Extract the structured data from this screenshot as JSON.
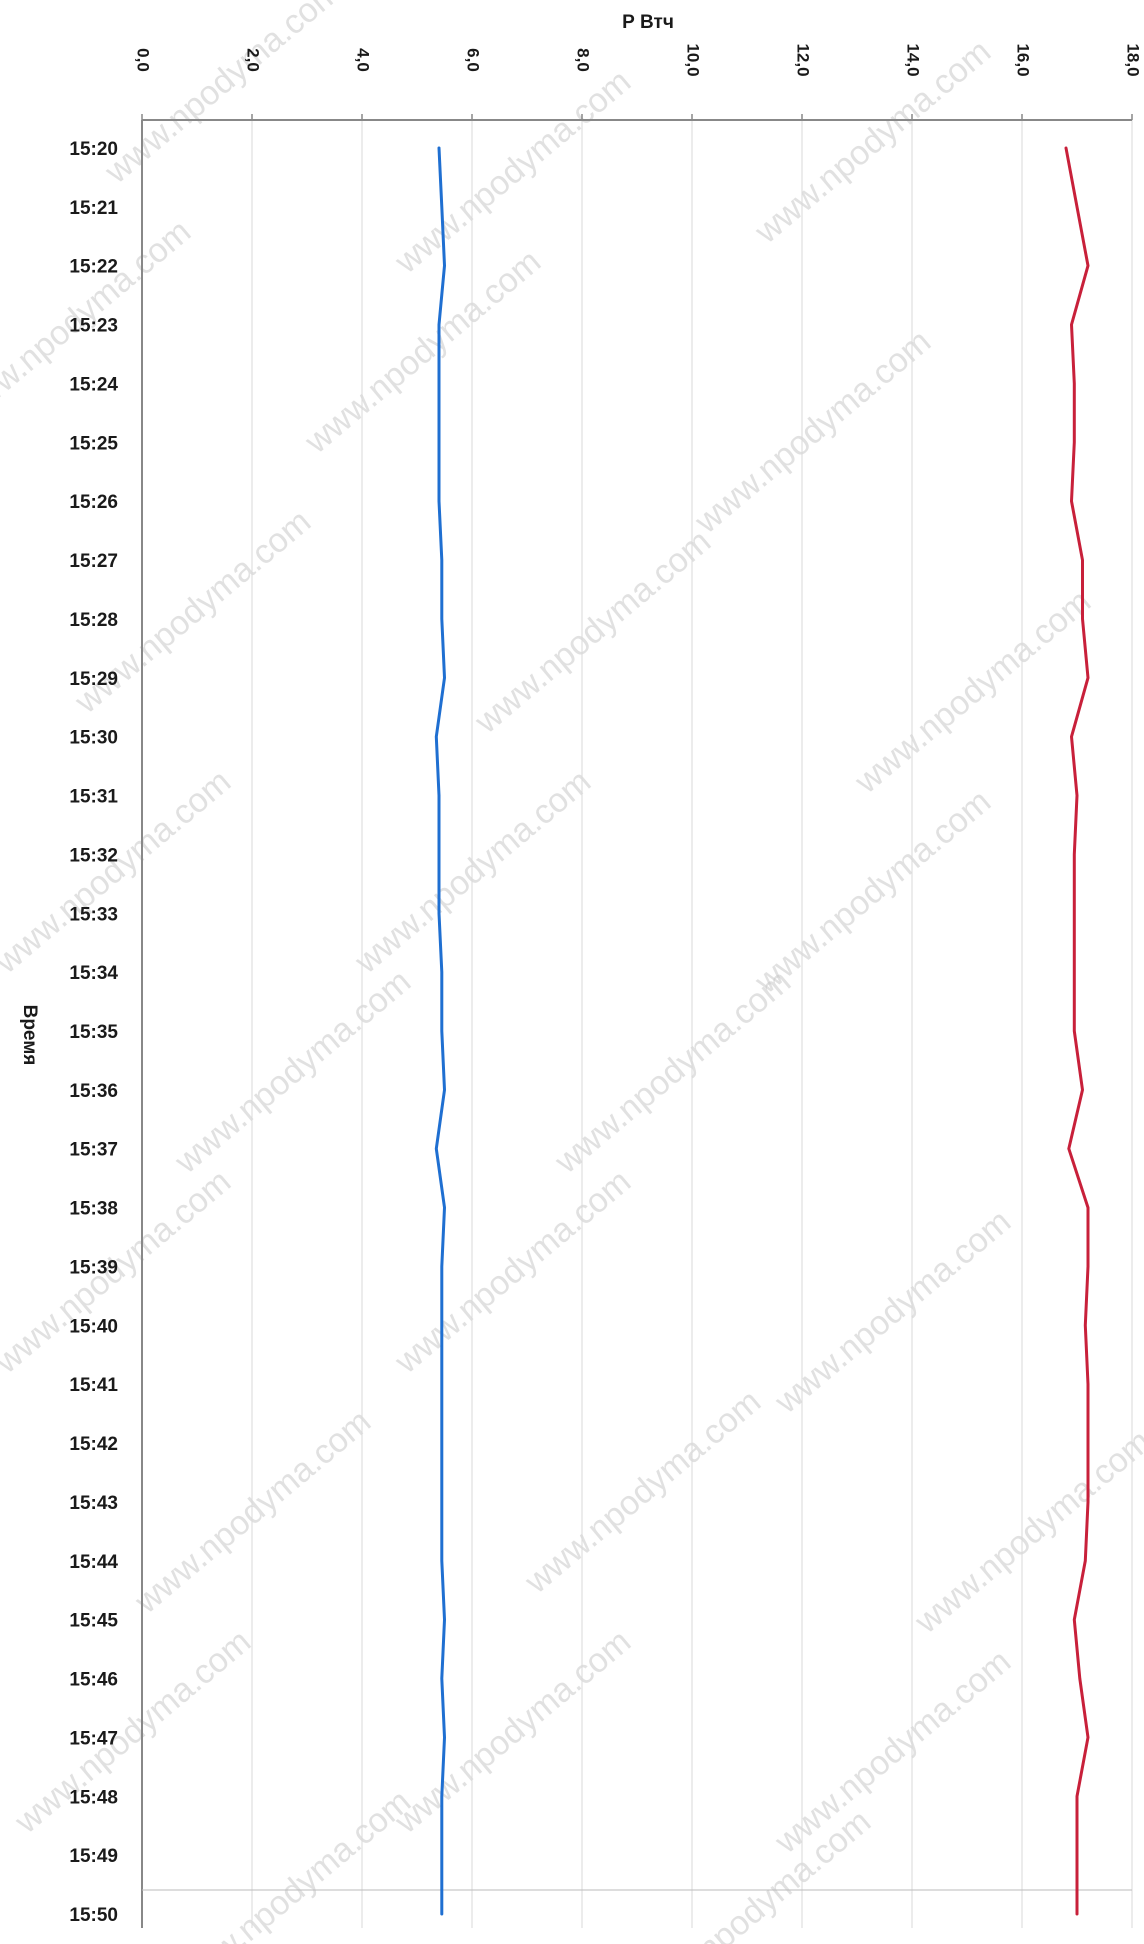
{
  "chart_data": {
    "type": "line",
    "orientation": "horizontal-values",
    "xlabel": "Р Втч",
    "ylabel": "Время",
    "xlim": [
      0,
      18
    ],
    "x_ticks": [
      "0,0",
      "2,0",
      "4,0",
      "6,0",
      "8,0",
      "10,0",
      "12,0",
      "14,0",
      "16,0",
      "18,0"
    ],
    "categories": [
      "15:20",
      "15:21",
      "15:22",
      "15:23",
      "15:24",
      "15:25",
      "15:26",
      "15:27",
      "15:28",
      "15:29",
      "15:30",
      "15:31",
      "15:32",
      "15:33",
      "15:34",
      "15:35",
      "15:36",
      "15:37",
      "15:38",
      "15:39",
      "15:40",
      "15:41",
      "15:42",
      "15:43",
      "15:44",
      "15:45",
      "15:46",
      "15:47",
      "15:48",
      "15:49",
      "15:50"
    ],
    "grid": "vertical",
    "series": [
      {
        "color": "#1f6fd1",
        "values": [
          5.4,
          5.45,
          5.5,
          5.4,
          5.4,
          5.4,
          5.4,
          5.45,
          5.45,
          5.5,
          5.35,
          5.4,
          5.4,
          5.4,
          5.45,
          5.45,
          5.5,
          5.35,
          5.5,
          5.45,
          5.45,
          5.45,
          5.45,
          5.45,
          5.45,
          5.5,
          5.45,
          5.5,
          5.45,
          5.45,
          5.45
        ]
      },
      {
        "color": "#c8203a",
        "values": [
          16.8,
          17.0,
          17.2,
          16.9,
          16.95,
          16.95,
          16.9,
          17.1,
          17.1,
          17.2,
          16.9,
          17.0,
          16.95,
          16.95,
          16.95,
          16.95,
          17.1,
          16.85,
          17.2,
          17.2,
          17.15,
          17.2,
          17.2,
          17.2,
          17.15,
          16.95,
          17.05,
          17.2,
          17.0,
          17.0,
          17.0
        ]
      }
    ]
  },
  "watermark": "www.npodyma.com"
}
